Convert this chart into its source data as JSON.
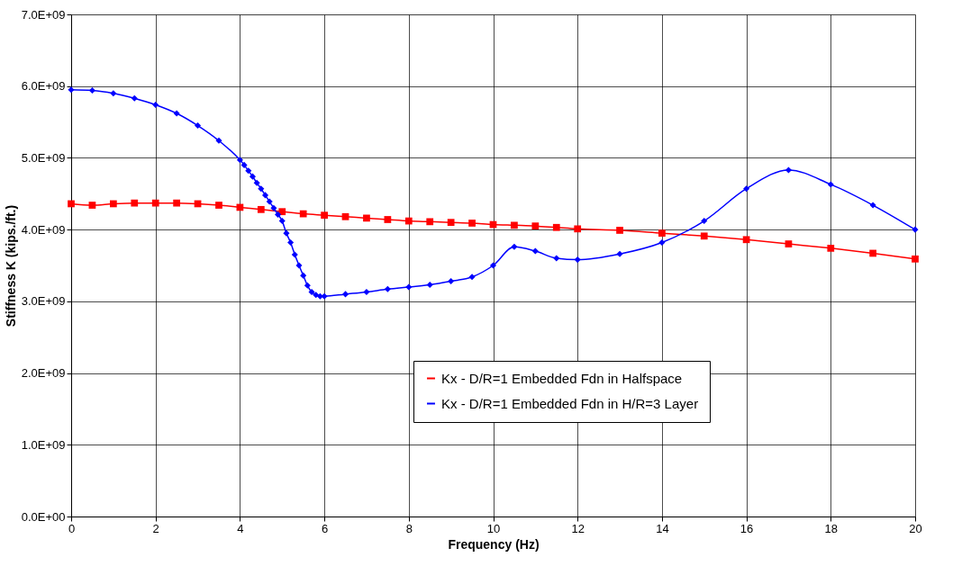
{
  "chart_data": {
    "type": "line",
    "xlabel": "Frequency (Hz)",
    "ylabel": "Stiffness K (kips./ft.)",
    "xlim": [
      0,
      20
    ],
    "xticks": [
      0,
      2,
      4,
      6,
      8,
      10,
      12,
      14,
      16,
      18,
      20
    ],
    "ylim": [
      0,
      7000000000
    ],
    "yticks": [
      {
        "value": 0,
        "label": "0.0E+00"
      },
      {
        "value": 1000000000,
        "label": "1.0E+09"
      },
      {
        "value": 2000000000,
        "label": "2.0E+09"
      },
      {
        "value": 3000000000,
        "label": "3.0E+09"
      },
      {
        "value": 4000000000,
        "label": "4.0E+09"
      },
      {
        "value": 5000000000,
        "label": "5.0E+09"
      },
      {
        "value": 6000000000,
        "label": "6.0E+09"
      },
      {
        "value": 7000000000,
        "label": "7.0E+09"
      }
    ],
    "grid": true,
    "legend": "bottom right",
    "line_style": "solid",
    "series": [
      {
        "name": "Kx - D/R=1 Embedded Fdn in Halfspace",
        "color": "#ff0000",
        "marker": "square",
        "x": [
          0,
          0.5,
          1,
          1.5,
          2,
          2.5,
          3,
          3.5,
          4,
          4.5,
          5,
          5.5,
          6,
          6.5,
          7,
          7.5,
          8,
          8.5,
          9,
          9.5,
          10,
          10.5,
          11,
          11.5,
          12,
          13,
          14,
          15,
          16,
          17,
          18,
          19,
          20
        ],
        "values": [
          4360000000,
          4340000000,
          4360000000,
          4370000000,
          4370000000,
          4370000000,
          4360000000,
          4340000000,
          4310000000,
          4280000000,
          4250000000,
          4220000000,
          4200000000,
          4180000000,
          4160000000,
          4140000000,
          4120000000,
          4110000000,
          4100000000,
          4090000000,
          4070000000,
          4060000000,
          4050000000,
          4030000000,
          4010000000,
          3990000000,
          3950000000,
          3910000000,
          3860000000,
          3800000000,
          3740000000,
          3670000000,
          3590000000
        ]
      },
      {
        "name": "Kx - D/R=1 Embedded Fdn in H/R=3 Layer",
        "color": "#0000ff",
        "marker": "diamond",
        "x": [
          0,
          0.5,
          1,
          1.5,
          2,
          2.5,
          3,
          3.5,
          4,
          4.1,
          4.2,
          4.3,
          4.4,
          4.5,
          4.6,
          4.7,
          4.8,
          4.9,
          5,
          5.1,
          5.2,
          5.3,
          5.4,
          5.5,
          5.6,
          5.7,
          5.8,
          5.9,
          6,
          6.5,
          7,
          7.5,
          8,
          8.5,
          9,
          9.5,
          10,
          10.5,
          11,
          11.5,
          12,
          13,
          14,
          15,
          16,
          17,
          18,
          19,
          20
        ],
        "values": [
          5950000000,
          5940000000,
          5900000000,
          5830000000,
          5740000000,
          5620000000,
          5450000000,
          5240000000,
          4970000000,
          4900000000,
          4820000000,
          4740000000,
          4650000000,
          4570000000,
          4480000000,
          4390000000,
          4300000000,
          4210000000,
          4120000000,
          3950000000,
          3820000000,
          3650000000,
          3500000000,
          3360000000,
          3220000000,
          3130000000,
          3090000000,
          3070000000,
          3070000000,
          3100000000,
          3130000000,
          3170000000,
          3200000000,
          3230000000,
          3280000000,
          3340000000,
          3500000000,
          3760000000,
          3700000000,
          3600000000,
          3580000000,
          3660000000,
          3820000000,
          4120000000,
          4570000000,
          4830000000,
          4630000000,
          4340000000,
          4000000000
        ]
      }
    ]
  }
}
